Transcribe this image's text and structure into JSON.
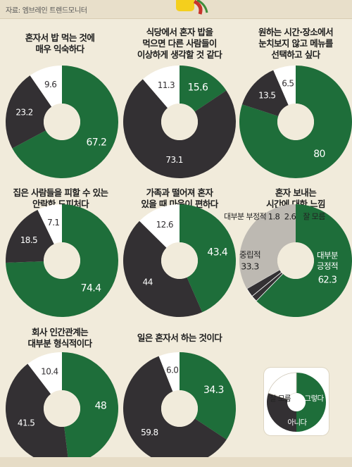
{
  "source": "자료: 엠브레인 트렌드모니터",
  "colors": {
    "green": "#1e6e3a",
    "dark": "#333033",
    "white": "#ffffff",
    "gray": "#bdb9b2"
  },
  "chart_data": [
    {
      "type": "pie",
      "title": "혼자서 밥 먹는 것에\n매우 익숙하다",
      "series": [
        {
          "values": [
            67.2,
            23.2,
            9.6
          ],
          "labels": [
            "67.2",
            "23.2",
            "9.6"
          ]
        }
      ]
    },
    {
      "type": "pie",
      "title": "식당에서 혼자 밥을\n먹으면 다른 사람들이\n이상하게 생각할 것 같다",
      "series": [
        {
          "values": [
            15.6,
            73.1,
            11.3
          ],
          "labels": [
            "15.6",
            "73.1",
            "11.3"
          ]
        }
      ]
    },
    {
      "type": "pie",
      "title": "원하는 시간·장소에서\n눈치보지 않고 메뉴를\n선택하고 싶다",
      "series": [
        {
          "values": [
            80,
            13.5,
            6.5
          ],
          "labels": [
            "80",
            "13.5",
            "6.5"
          ]
        }
      ]
    },
    {
      "type": "pie",
      "title": "집은 사람들을 피할 수 있는\n안락한 도피처다",
      "series": [
        {
          "values": [
            74.4,
            18.5,
            7.1
          ],
          "labels": [
            "74.4",
            "18.5",
            "7.1"
          ]
        }
      ]
    },
    {
      "type": "pie",
      "title": "가족과 떨어져 혼자\n있을 때 마음이 편하다",
      "series": [
        {
          "values": [
            43.4,
            44,
            12.6
          ],
          "labels": [
            "43.4",
            "44",
            "12.6"
          ]
        }
      ]
    },
    {
      "type": "pie",
      "title": "혼자 보내는\n시간에 대한 느낌",
      "categories": [
        "대부분 긍정적",
        "대부분 부정적",
        "잘 모름",
        "중립적"
      ],
      "series": [
        {
          "values": [
            62.3,
            1.8,
            2.6,
            33.3
          ]
        }
      ],
      "labels": {
        "positive_name": "대부분\n긍정적",
        "positive_value": "62.3",
        "negative_name": "대부분 부정적",
        "negative_value": "1.8",
        "unknown_name": "잘 모름",
        "unknown_value": "2.6",
        "neutral_name": "중립적",
        "neutral_value": "33.3"
      }
    },
    {
      "type": "pie",
      "title": "회사 인간관계는\n대부분 형식적이다",
      "series": [
        {
          "values": [
            48,
            41.5,
            10.4
          ],
          "labels": [
            "48",
            "41.5",
            "10.4"
          ]
        }
      ]
    },
    {
      "type": "pie",
      "title": "일은 혼자서 하는 것이다",
      "series": [
        {
          "values": [
            34.3,
            59.8,
            6.0
          ],
          "labels": [
            "34.3",
            "59.8",
            "6.0"
          ]
        }
      ]
    }
  ],
  "legend": {
    "items": [
      "그렇다",
      "아니다",
      "잘 모름"
    ]
  }
}
